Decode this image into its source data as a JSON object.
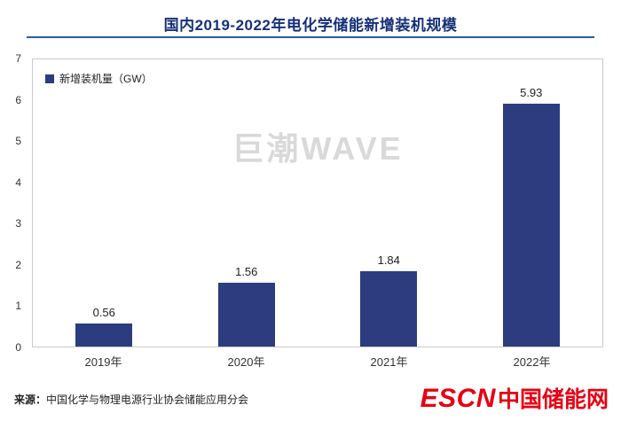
{
  "title": "国内2019-2022年电化学储能新增装机规模",
  "legend": {
    "label": "新增装机量（GW）"
  },
  "watermark": "巨潮WAVE",
  "footer": {
    "source_label": "来源：",
    "source_text": "中国化学与物理电源行业协会储能应用分会",
    "logo_en": "ESCN",
    "logo_cn": "中国储能网"
  },
  "colors": {
    "bar": "#2c3c7f",
    "title": "#16307a",
    "accent_line": "#2e5aa8",
    "logo_red": "#e60012",
    "watermark_gray": "#d9d9d9"
  },
  "chart_data": {
    "type": "bar",
    "categories": [
      "2019年",
      "2020年",
      "2021年",
      "2022年"
    ],
    "values": [
      0.56,
      1.56,
      1.84,
      5.93
    ],
    "value_labels": [
      "0.56",
      "1.56",
      "1.84",
      "5.93"
    ],
    "title": "国内2019-2022年电化学储能新增装机规模",
    "xlabel": "",
    "ylabel": "",
    "ylim": [
      0,
      7
    ],
    "yticks": [
      0,
      1,
      2,
      3,
      4,
      5,
      6,
      7
    ],
    "legend": [
      "新增装机量（GW）"
    ],
    "legend_position": "top-left",
    "grid": false,
    "bar_color": "#2c3c7f"
  }
}
